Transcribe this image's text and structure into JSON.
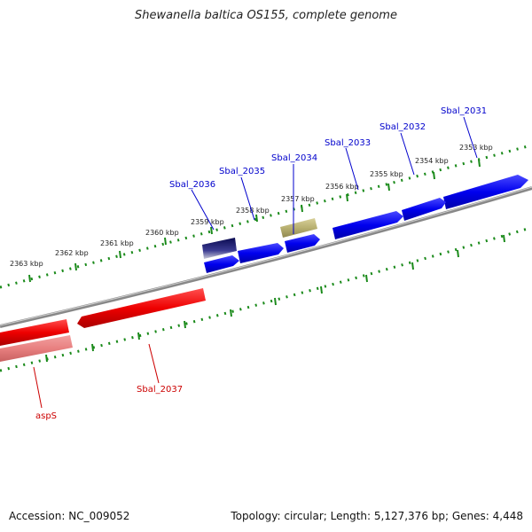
{
  "title": "Shewanella baltica OS155, complete genome",
  "footer": {
    "accession": "Accession: NC_009052",
    "topology": "Topology: circular; Length: 5,127,376 bp; Genes: 4,448"
  },
  "kbp_labels": [
    "2353 kbp",
    "2354 kbp",
    "2355 kbp",
    "2356 kbp",
    "2357 kbp",
    "2358 kbp",
    "2359 kbp",
    "2360 kbp",
    "2361 kbp",
    "2362 kbp",
    "2363 kbp"
  ],
  "genes": {
    "sbal_2031": "Sbal_2031",
    "sbal_2032": "Sbal_2032",
    "sbal_2033": "Sbal_2033",
    "sbal_2034": "Sbal_2034",
    "sbal_2035": "Sbal_2035",
    "sbal_2036": "Sbal_2036",
    "sbal_2037": "Sbal_2037",
    "asps": "aspS"
  },
  "colors": {
    "forward_gene": "#0000ee",
    "reverse_gene": "#ee0000",
    "pseudo_reverse": "#e88888",
    "rna_gene": "#b8b070",
    "dark_gene": "#1a1a6e",
    "backbone": "#888888",
    "ruler": "#1a8a1a"
  }
}
